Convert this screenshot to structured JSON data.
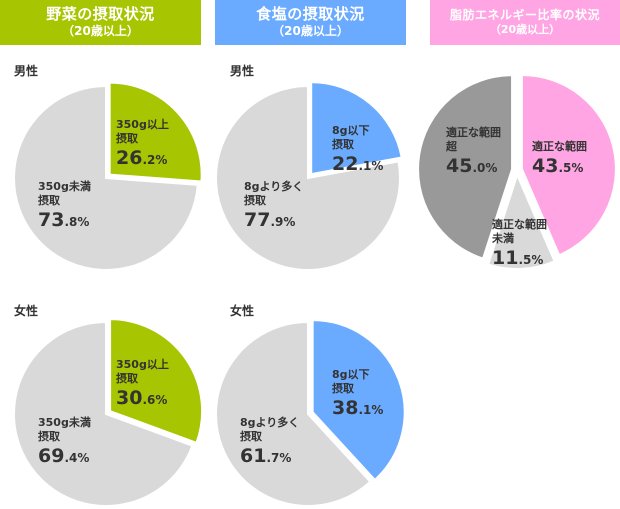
{
  "headers": [
    {
      "title": "野菜の摂取状況",
      "subtitle": "（20歳以上）",
      "color": "#a7c500"
    },
    {
      "title": "食塩の摂取状況",
      "subtitle": "（20歳以上）",
      "color": "#6aabff"
    },
    {
      "title": "脂肪エネルギー比率の状況",
      "subtitle": "（20歳以上）",
      "color": "#ffa5e3"
    }
  ],
  "sex_labels": {
    "male": "男性",
    "female": "女性"
  },
  "chart_data": [
    {
      "type": "pie",
      "id": "veg-male",
      "group": "野菜の摂取状況",
      "sex": "男性",
      "slices": [
        {
          "label": [
            "350g以上",
            "摂取"
          ],
          "value": 26.2,
          "color": "#a7c500",
          "exploded": true
        },
        {
          "label": [
            "350g未満",
            "摂取"
          ],
          "value": 73.8,
          "color": "#d9d9d9",
          "exploded": false
        }
      ]
    },
    {
      "type": "pie",
      "id": "salt-male",
      "group": "食塩の摂取状況",
      "sex": "男性",
      "slices": [
        {
          "label": [
            "8g以下",
            "摂取"
          ],
          "value": 22.1,
          "color": "#6aabff",
          "exploded": true
        },
        {
          "label": [
            "8gより多く",
            "摂取"
          ],
          "value": 77.9,
          "color": "#d9d9d9",
          "exploded": false
        }
      ]
    },
    {
      "type": "pie",
      "id": "fat-male",
      "group": "脂肪エネルギー比率の状況",
      "sex": "男性",
      "slices": [
        {
          "label": [
            "適正な範囲"
          ],
          "value": 43.5,
          "color": "#ffa5e3",
          "exploded": true
        },
        {
          "label": [
            "適正な範囲",
            "未満"
          ],
          "value": 11.5,
          "color": "#d9d9d9",
          "exploded": true
        },
        {
          "label": [
            "適正な範囲",
            "超"
          ],
          "value": 45.0,
          "color": "#999999",
          "exploded": true
        }
      ]
    },
    {
      "type": "pie",
      "id": "veg-female",
      "group": "野菜の摂取状況",
      "sex": "女性",
      "slices": [
        {
          "label": [
            "350g以上",
            "摂取"
          ],
          "value": 30.6,
          "color": "#a7c500",
          "exploded": true
        },
        {
          "label": [
            "350g未満",
            "摂取"
          ],
          "value": 69.4,
          "color": "#d9d9d9",
          "exploded": false
        }
      ]
    },
    {
      "type": "pie",
      "id": "salt-female",
      "group": "食塩の摂取状況",
      "sex": "女性",
      "slices": [
        {
          "label": [
            "8g以下",
            "摂取"
          ],
          "value": 38.1,
          "color": "#6aabff",
          "exploded": true
        },
        {
          "label": [
            "8gより多く",
            "摂取"
          ],
          "value": 61.7,
          "color": "#d9d9d9",
          "exploded": false
        }
      ]
    }
  ]
}
